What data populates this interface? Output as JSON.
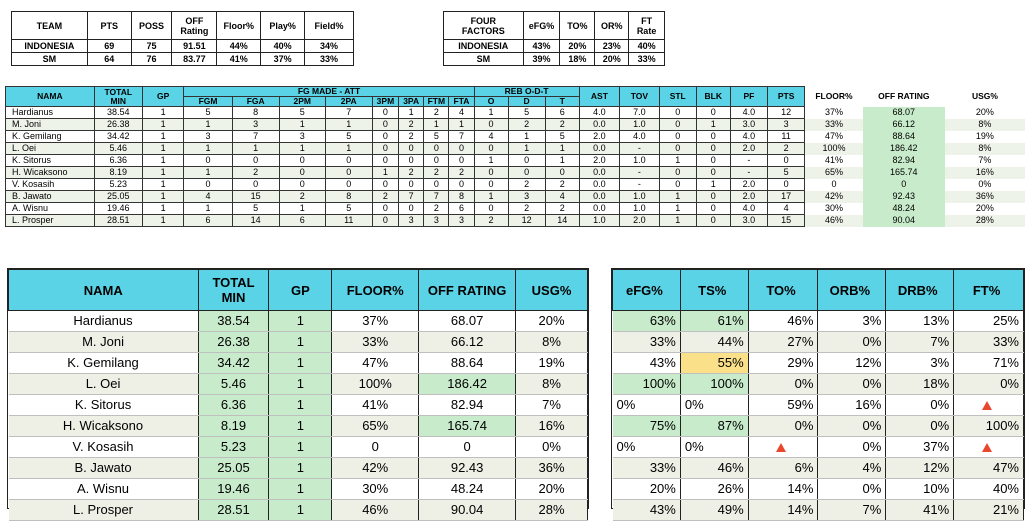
{
  "summary_headers": [
    "TEAM",
    "PTS",
    "POSS",
    "OFF Rating",
    "Floor%",
    "Play%",
    "Field%"
  ],
  "summary_rows": [
    [
      "INDONESIA",
      "69",
      "75",
      "91.51",
      "44%",
      "40%",
      "34%"
    ],
    [
      "SM",
      "64",
      "76",
      "83.77",
      "41%",
      "37%",
      "33%"
    ]
  ],
  "factors_headers": [
    "FOUR FACTORS",
    "eFG%",
    "TO%",
    "OR%",
    "FT Rate"
  ],
  "factors_rows": [
    [
      "INDONESIA",
      "43%",
      "20%",
      "23%",
      "40%"
    ],
    [
      "SM",
      "39%",
      "18%",
      "20%",
      "33%"
    ]
  ],
  "box": {
    "nama": "NAMA",
    "total_min": "TOTAL MIN",
    "gp": "GP",
    "fg_group": "FG MADE - ATT",
    "fg_cols": [
      "FGM",
      "FGA",
      "2PM",
      "2PA",
      "3PM",
      "3PA",
      "FTM",
      "FTA"
    ],
    "reb_group": "REB O-D-T",
    "reb_cols": [
      "O",
      "D",
      "T"
    ],
    "tail_cols": [
      "AST",
      "TOV",
      "STL",
      "BLK",
      "PF",
      "PTS"
    ],
    "extra_cols": [
      "FLOOR%",
      "OFF RATING",
      "USG%"
    ],
    "rows": [
      [
        "Hardianus",
        "38.54",
        "1",
        "5",
        "8",
        "5",
        "7",
        "0",
        "1",
        "2",
        "4",
        "1",
        "5",
        "6",
        "4.0",
        "7.0",
        "0",
        "0",
        "4.0",
        "12",
        "37%",
        "68.07",
        "20%"
      ],
      [
        "M. Joni",
        "26.38",
        "1",
        "1",
        "3",
        "1",
        "1",
        "0",
        "2",
        "1",
        "1",
        "0",
        "2",
        "2",
        "0.0",
        "1.0",
        "0",
        "1",
        "3.0",
        "3",
        "33%",
        "66.12",
        "8%"
      ],
      [
        "K. Gemilang",
        "34.42",
        "1",
        "3",
        "7",
        "3",
        "5",
        "0",
        "2",
        "5",
        "7",
        "4",
        "1",
        "5",
        "2.0",
        "4.0",
        "0",
        "0",
        "4.0",
        "11",
        "47%",
        "88.64",
        "19%"
      ],
      [
        "L. Oei",
        "5.46",
        "1",
        "1",
        "1",
        "1",
        "1",
        "0",
        "0",
        "0",
        "0",
        "0",
        "1",
        "1",
        "0.0",
        "-",
        "0",
        "0",
        "2.0",
        "2",
        "100%",
        "186.42",
        "8%"
      ],
      [
        "K. Sitorus",
        "6.36",
        "1",
        "0",
        "0",
        "0",
        "0",
        "0",
        "0",
        "0",
        "0",
        "1",
        "0",
        "1",
        "2.0",
        "1.0",
        "1",
        "0",
        "-",
        "0",
        "41%",
        "82.94",
        "7%"
      ],
      [
        "H. Wicaksono",
        "8.19",
        "1",
        "1",
        "2",
        "0",
        "0",
        "1",
        "2",
        "2",
        "2",
        "0",
        "0",
        "0",
        "0.0",
        "-",
        "0",
        "0",
        "-",
        "5",
        "65%",
        "165.74",
        "16%"
      ],
      [
        "V. Kosasih",
        "5.23",
        "1",
        "0",
        "0",
        "0",
        "0",
        "0",
        "0",
        "0",
        "0",
        "0",
        "2",
        "2",
        "0.0",
        "-",
        "0",
        "1",
        "2.0",
        "0",
        "0",
        "0",
        "0%"
      ],
      [
        "B. Jawato",
        "25.05",
        "1",
        "4",
        "15",
        "2",
        "8",
        "2",
        "7",
        "7",
        "8",
        "1",
        "3",
        "4",
        "0.0",
        "1.0",
        "1",
        "0",
        "2.0",
        "17",
        "42%",
        "92.43",
        "36%"
      ],
      [
        "A. Wisnu",
        "19.46",
        "1",
        "1",
        "5",
        "1",
        "5",
        "0",
        "0",
        "2",
        "6",
        "0",
        "2",
        "2",
        "0.0",
        "1.0",
        "1",
        "0",
        "4.0",
        "4",
        "30%",
        "48.24",
        "20%"
      ],
      [
        "L. Prosper",
        "28.51",
        "1",
        "6",
        "14",
        "6",
        "11",
        "0",
        "3",
        "3",
        "3",
        "2",
        "12",
        "14",
        "1.0",
        "2.0",
        "1",
        "0",
        "3.0",
        "15",
        "46%",
        "90.04",
        "28%"
      ]
    ]
  },
  "advanced_left": {
    "headers": [
      "NAMA",
      "TOTAL MIN",
      "GP",
      "FLOOR%",
      "OFF RATING",
      "USG%"
    ],
    "rows": [
      [
        "Hardianus",
        "38.54",
        "1",
        "37%",
        "68.07",
        "20%"
      ],
      [
        "M. Joni",
        "26.38",
        "1",
        "33%",
        "66.12",
        "8%"
      ],
      [
        "K. Gemilang",
        "34.42",
        "1",
        "47%",
        "88.64",
        "19%"
      ],
      [
        "L. Oei",
        "5.46",
        "1",
        "100%",
        "186.42",
        "8%"
      ],
      [
        "K. Sitorus",
        "6.36",
        "1",
        "41%",
        "82.94",
        "7%"
      ],
      [
        "H. Wicaksono",
        "8.19",
        "1",
        "65%",
        "165.74",
        "16%"
      ],
      [
        "V. Kosasih",
        "5.23",
        "1",
        "0",
        "0",
        "0%"
      ],
      [
        "B. Jawato",
        "25.05",
        "1",
        "42%",
        "92.43",
        "36%"
      ],
      [
        "A. Wisnu",
        "19.46",
        "1",
        "30%",
        "48.24",
        "20%"
      ],
      [
        "L. Prosper",
        "28.51",
        "1",
        "46%",
        "90.04",
        "28%"
      ]
    ]
  },
  "advanced_right": {
    "headers": [
      "eFG%",
      "TS%",
      "TO%",
      "ORB%",
      "DRB%",
      "FT%"
    ],
    "rows": [
      [
        "63%",
        "61%",
        "46%",
        "3%",
        "13%",
        "25%"
      ],
      [
        "33%",
        "44%",
        "27%",
        "0%",
        "7%",
        "33%"
      ],
      [
        "43%",
        "55%",
        "29%",
        "12%",
        "3%",
        "71%"
      ],
      [
        "100%",
        "100%",
        "0%",
        "0%",
        "18%",
        "0%"
      ],
      [
        "0%",
        "0%",
        "59%",
        "16%",
        "0%",
        "warn"
      ],
      [
        "75%",
        "87%",
        "0%",
        "0%",
        "0%",
        "100%"
      ],
      [
        "0%",
        "0%",
        "warn",
        "0%",
        "37%",
        "warn"
      ],
      [
        "33%",
        "46%",
        "6%",
        "4%",
        "12%",
        "47%"
      ],
      [
        "20%",
        "26%",
        "14%",
        "0%",
        "10%",
        "40%"
      ],
      [
        "43%",
        "49%",
        "14%",
        "7%",
        "41%",
        "21%"
      ]
    ]
  },
  "icons": {
    "warning": "warning-triangle-icon"
  },
  "colors": {
    "header": "#5ad3e6",
    "highlight_green": "#c8eccb",
    "highlight_yellow": "#fbe08a",
    "warning": "#e8472e"
  }
}
